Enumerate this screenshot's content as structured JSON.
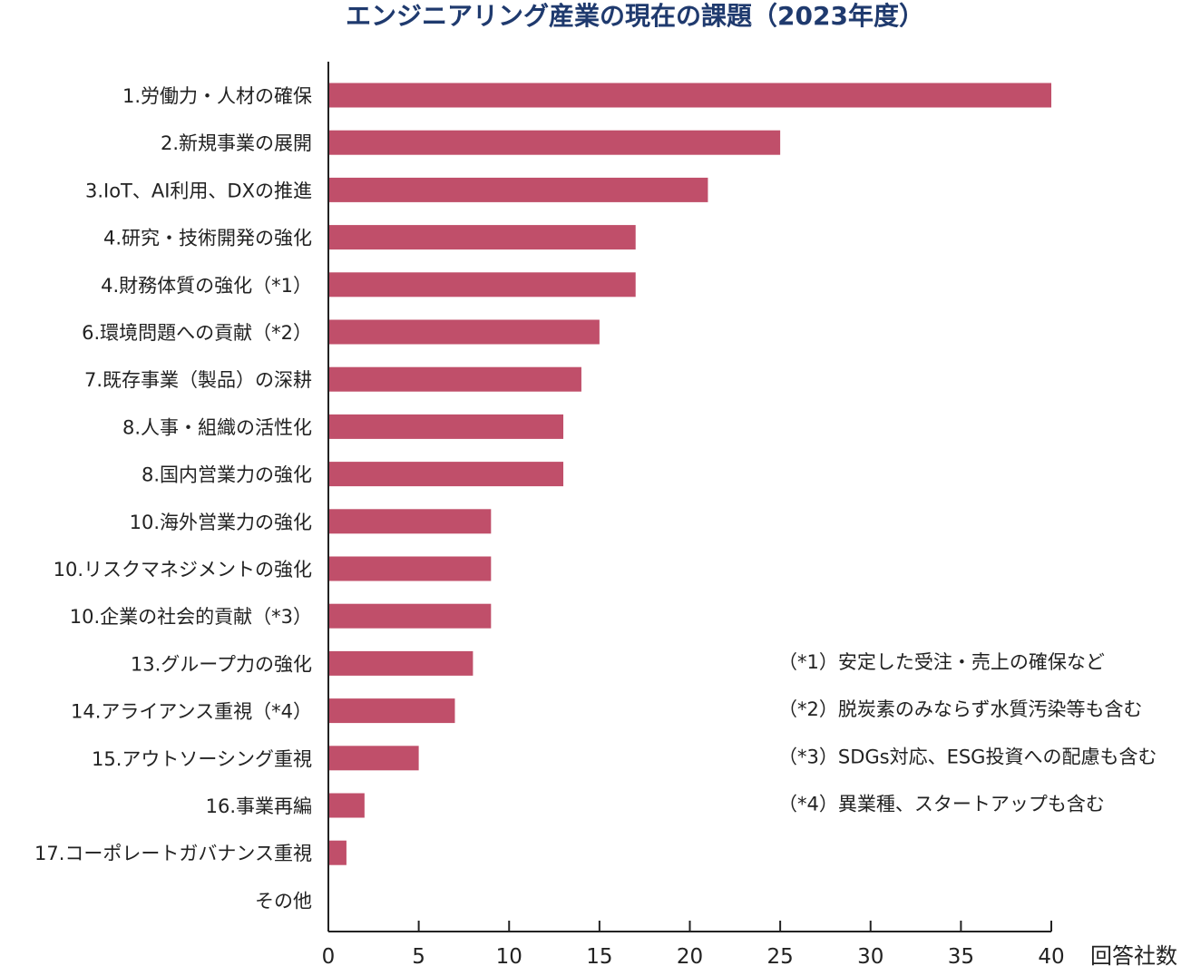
{
  "chart_data": {
    "type": "bar",
    "orientation": "horizontal",
    "title": "エンジニアリング産業の現在の課題（2023年度）",
    "xlabel": "回答社数",
    "ylabel": "",
    "xlim": [
      0,
      40
    ],
    "xticks": [
      0,
      5,
      10,
      15,
      20,
      25,
      30,
      35,
      40
    ],
    "grid": false,
    "bar_color": "#c04f6a",
    "categories": [
      "1.労働力・人材の確保",
      "2.新規事業の展開",
      "3.IoT、AI利用、DXの推進",
      "4.研究・技術開発の強化",
      "4.財務体質の強化（*1）",
      "6.環境問題への貢献（*2）",
      "7.既存事業（製品）の深耕",
      "8.人事・組織の活性化",
      "8.国内営業力の強化",
      "10.海外営業力の強化",
      "10.リスクマネジメントの強化",
      "10.企業の社会的貢献（*3）",
      "13.グループ力の強化",
      "14.アライアンス重視（*4）",
      "15.アウトソーシング重視",
      "16.事業再編",
      "17.コーポレートガバナンス重視",
      "その他"
    ],
    "values": [
      40,
      25,
      21,
      17,
      17,
      15,
      14,
      13,
      13,
      9,
      9,
      9,
      8,
      7,
      5,
      2,
      1,
      0
    ],
    "notes": [
      "（*1）安定した受注・売上の確保など",
      "（*2）脱炭素のみならず水質汚染等も含む",
      "（*3）SDGs対応、ESG投資への配慮も含む",
      "（*4）異業種、スタートアップも含む"
    ]
  },
  "colors": {
    "title": "#1f3a6e",
    "bar": "#c04f6a",
    "axis": "#222222",
    "text": "#222222"
  }
}
